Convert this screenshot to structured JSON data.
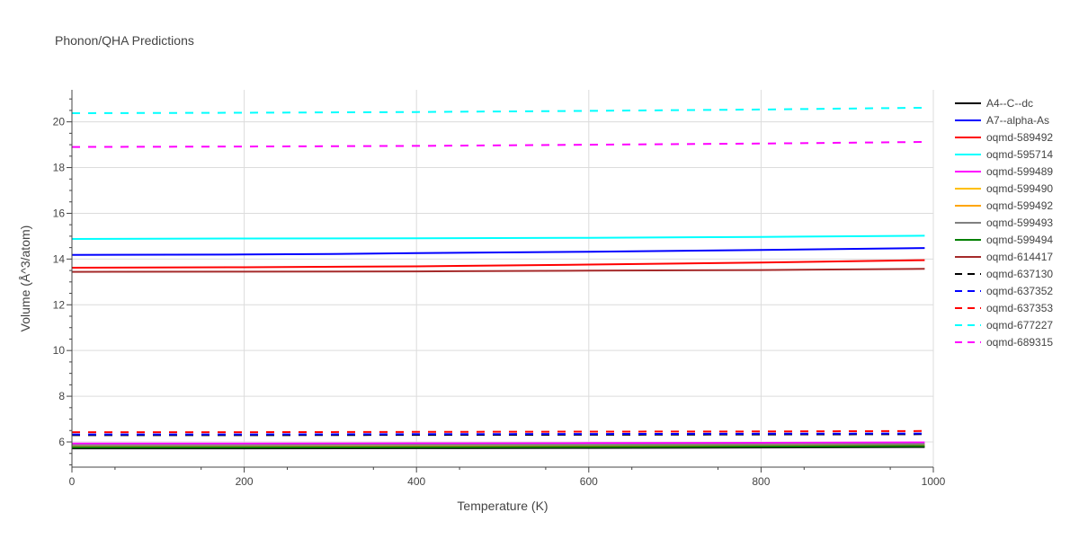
{
  "chart_data": {
    "type": "line",
    "title": "Phonon/QHA Predictions",
    "xlabel": "Temperature (K)",
    "ylabel": "Volume (Å^3/atom)",
    "xlim": [
      0,
      1000
    ],
    "ylim": [
      4.9,
      21.4
    ],
    "x_ticks": [
      "0",
      "200",
      "400",
      "600",
      "800",
      "1000"
    ],
    "y_ticks": [
      "6",
      "8",
      "10",
      "12",
      "14",
      "16",
      "18",
      "20"
    ],
    "grid": true,
    "legend_position": "right",
    "series": [
      {
        "name": "A4--C--dc",
        "color": "#000000",
        "dash": "solid",
        "x": [
          0,
          200,
          400,
          600,
          800,
          990
        ],
        "y": [
          5.72,
          5.72,
          5.73,
          5.74,
          5.76,
          5.78
        ]
      },
      {
        "name": "A7--alpha-As",
        "color": "#0000ff",
        "dash": "solid",
        "x": [
          0,
          200,
          300,
          400,
          600,
          800,
          990
        ],
        "y": [
          14.18,
          14.2,
          14.22,
          14.26,
          14.32,
          14.4,
          14.48
        ]
      },
      {
        "name": "oqmd-589492",
        "color": "#ff0000",
        "dash": "solid",
        "x": [
          0,
          200,
          400,
          600,
          800,
          990
        ],
        "y": [
          13.62,
          13.64,
          13.68,
          13.76,
          13.85,
          13.95
        ]
      },
      {
        "name": "oqmd-595714",
        "color": "#00ffff",
        "dash": "solid",
        "x": [
          0,
          200,
          400,
          600,
          800,
          990
        ],
        "y": [
          14.88,
          14.9,
          14.91,
          14.93,
          14.97,
          15.02
        ]
      },
      {
        "name": "oqmd-599489",
        "color": "#ff00ff",
        "dash": "solid",
        "x": [
          0,
          200,
          400,
          600,
          800,
          990
        ],
        "y": [
          5.93,
          5.93,
          5.94,
          5.95,
          5.96,
          5.98
        ]
      },
      {
        "name": "oqmd-599490",
        "color": "#ffbf00",
        "dash": "solid",
        "x": [
          0,
          200,
          400,
          600,
          800,
          990
        ],
        "y": [
          5.8,
          5.8,
          5.81,
          5.82,
          5.83,
          5.85
        ]
      },
      {
        "name": "oqmd-599492",
        "color": "#ffa500",
        "dash": "solid",
        "x": [
          0,
          200,
          400,
          600,
          800,
          990
        ],
        "y": [
          5.83,
          5.83,
          5.84,
          5.85,
          5.86,
          5.88
        ]
      },
      {
        "name": "oqmd-599493",
        "color": "#808080",
        "dash": "solid",
        "x": [
          0,
          200,
          400,
          600,
          800,
          990
        ],
        "y": [
          5.86,
          5.86,
          5.87,
          5.88,
          5.89,
          5.91
        ]
      },
      {
        "name": "oqmd-599494",
        "color": "#008000",
        "dash": "solid",
        "x": [
          0,
          200,
          400,
          600,
          800,
          990
        ],
        "y": [
          5.76,
          5.76,
          5.77,
          5.78,
          5.8,
          5.82
        ]
      },
      {
        "name": "oqmd-614417",
        "color": "#a52a2a",
        "dash": "solid",
        "x": [
          0,
          200,
          400,
          600,
          800,
          990
        ],
        "y": [
          13.44,
          13.45,
          13.46,
          13.49,
          13.52,
          13.57
        ]
      },
      {
        "name": "oqmd-637130",
        "color": "#000000",
        "dash": "dash",
        "x": [
          0,
          200,
          400,
          600,
          800,
          990
        ],
        "y": [
          6.3,
          6.3,
          6.31,
          6.32,
          6.33,
          6.34
        ]
      },
      {
        "name": "oqmd-637352",
        "color": "#0000ff",
        "dash": "dash",
        "x": [
          0,
          200,
          400,
          600,
          800,
          990
        ],
        "y": [
          6.33,
          6.33,
          6.34,
          6.35,
          6.36,
          6.37
        ]
      },
      {
        "name": "oqmd-637353",
        "color": "#ff0000",
        "dash": "dash",
        "x": [
          0,
          200,
          400,
          600,
          800,
          990
        ],
        "y": [
          6.43,
          6.43,
          6.44,
          6.45,
          6.46,
          6.48
        ]
      },
      {
        "name": "oqmd-677227",
        "color": "#00ffff",
        "dash": "dash",
        "x": [
          0,
          200,
          400,
          600,
          800,
          990
        ],
        "y": [
          20.38,
          20.4,
          20.43,
          20.48,
          20.54,
          20.62
        ]
      },
      {
        "name": "oqmd-689315",
        "color": "#ff00ff",
        "dash": "dash",
        "x": [
          0,
          200,
          400,
          600,
          800,
          990
        ],
        "y": [
          18.9,
          18.92,
          18.95,
          19.0,
          19.05,
          19.12
        ]
      }
    ]
  }
}
